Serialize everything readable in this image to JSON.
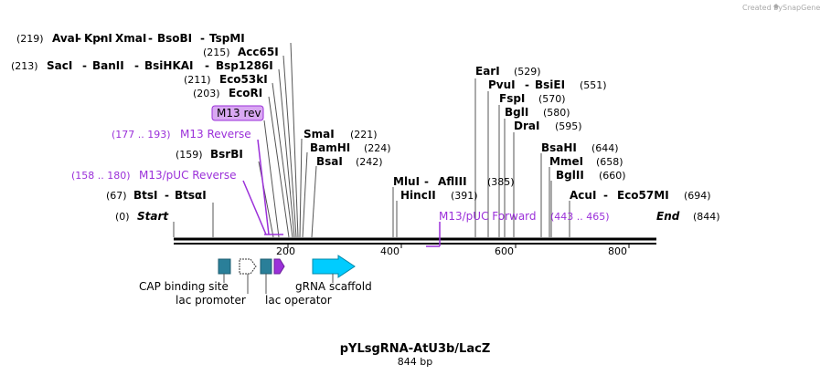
{
  "header": {
    "credit": "Created by",
    "brand": "SnapGene"
  },
  "map": {
    "name": "pYLsgRNA-AtU3b/LacZ",
    "length_label": "844 bp",
    "ends": {
      "start_label": "Start",
      "start_pos": "(0)",
      "end_label": "End",
      "end_pos": "(844)"
    },
    "ticks": [
      "200",
      "400",
      "600",
      "800"
    ]
  },
  "sites": {
    "s219": {
      "pos": "(219)",
      "names": [
        "AvaI",
        "KpnI",
        "XmaI",
        "BsoBI",
        "TspMI"
      ]
    },
    "s215": {
      "pos": "(215)",
      "names": [
        "Acc65I"
      ]
    },
    "s213": {
      "pos": "(213)",
      "names": [
        "SacI",
        "BanII",
        "BsiHKAI",
        "Bsp1286I"
      ]
    },
    "s211": {
      "pos": "(211)",
      "names": [
        "Eco53kI"
      ]
    },
    "s203": {
      "pos": "(203)",
      "names": [
        "EcoRI"
      ]
    },
    "s159": {
      "pos": "(159)",
      "names": [
        "BsrBI"
      ]
    },
    "s67": {
      "pos": "(67)",
      "names": [
        "BtsI",
        "BtsαI"
      ]
    },
    "s221": {
      "pos": "(221)",
      "names": [
        "SmaI"
      ]
    },
    "s224": {
      "pos": "(224)",
      "names": [
        "BamHI"
      ]
    },
    "s242": {
      "pos": "(242)",
      "names": [
        "BsaI"
      ]
    },
    "s385": {
      "pos": "(385)",
      "names": [
        "MluI",
        "AflIII"
      ]
    },
    "s391": {
      "pos": "(391)",
      "names": [
        "HincII"
      ]
    },
    "s529": {
      "pos": "(529)",
      "names": [
        "EarI"
      ]
    },
    "s551": {
      "pos": "(551)",
      "names": [
        "PvuI",
        "BsiEI"
      ]
    },
    "s570": {
      "pos": "(570)",
      "names": [
        "FspI"
      ]
    },
    "s580": {
      "pos": "(580)",
      "names": [
        "BglI"
      ]
    },
    "s595": {
      "pos": "(595)",
      "names": [
        "DraI"
      ]
    },
    "s644": {
      "pos": "(644)",
      "names": [
        "BsaHI"
      ]
    },
    "s658": {
      "pos": "(658)",
      "names": [
        "MmeI"
      ]
    },
    "s660": {
      "pos": "(660)",
      "names": [
        "BglII"
      ]
    },
    "s694": {
      "pos": "(694)",
      "names": [
        "AcuI",
        "Eco57MI"
      ]
    }
  },
  "primers": {
    "m13rev": "M13 rev",
    "m13reverse": {
      "label": "M13 Reverse",
      "range": "(177 .. 193)"
    },
    "m13puc_reverse": {
      "label": "M13/pUC Reverse",
      "range": "(158 .. 180)"
    },
    "m13puc_forward": {
      "label": "M13/pUC Forward",
      "range": "(443 .. 465)"
    }
  },
  "features": {
    "cap": "CAP binding site",
    "lacprom": "lac promoter",
    "lacop": "lac operator",
    "grna": "gRNA scaffold"
  },
  "colors": {
    "primer": "#9b30d9",
    "primer_fill": "#d9a8f2",
    "cap_fill": "#2a7f99",
    "lacop_fill": "#2a7f99",
    "grna_fill": "#00ccff",
    "primer_arrow_fill": "#9b30d9"
  }
}
